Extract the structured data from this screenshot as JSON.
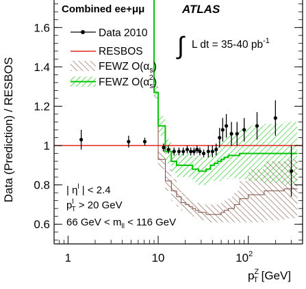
{
  "colors": {
    "resbos": "#e5231c",
    "fewz1": "#7b4a3c",
    "fewz2": "#00c400",
    "data": "#000000"
  },
  "chart_data": {
    "type": "line",
    "x_scale": "log",
    "xlim": [
      0.7,
      400
    ],
    "ylim": [
      0.5,
      1.74
    ],
    "y_ticks": [
      0.6,
      0.8,
      1.0,
      1.2,
      1.4,
      1.6
    ],
    "y_tick_labels": [
      "0.6",
      "0.8",
      "1",
      "1.2",
      "1.4",
      "1.6"
    ],
    "x_tick_labels": [
      "1",
      "10"
    ],
    "x_tick_label_10e2": {
      "base": "10",
      "exp": "2"
    },
    "ylabel": "Data (Prediction) / RESBOS",
    "xlabel": {
      "main": "p",
      "sup": "Z",
      "sub": "T",
      "unit": " [GeV]"
    },
    "texts": {
      "combined": "Combined ee+μμ",
      "atlas": "ATLAS",
      "lumi": "L dt = 35-40 pb",
      "lumi_sup": "-1",
      "cut_eta": "| η",
      "cut_eta_sup": "l",
      "cut_eta_rest": " | < 2.4",
      "cut_pt": "p",
      "cut_pt_sup": "l",
      "cut_pt_sub": "T",
      "cut_pt_rest": " > 20 GeV",
      "cut_m": "66 GeV < m",
      "cut_m_sub": "ll",
      "cut_m_rest": " < 116 GeV"
    },
    "legend": [
      {
        "key": "data",
        "label": "Data 2010"
      },
      {
        "key": "resbos",
        "label": "RESBOS"
      },
      {
        "key": "fewz1",
        "label": "FEWZ O(α",
        "sub": "s",
        "tail": ")"
      },
      {
        "key": "fewz2",
        "label": "FEWZ O(α",
        "sub": "s",
        "sup": "2",
        "tail": ")"
      }
    ],
    "bin_edges": [
      0,
      3,
      6,
      8,
      9,
      10,
      12,
      14,
      16,
      18,
      20,
      22,
      24,
      26,
      28,
      30,
      34,
      38,
      42,
      46,
      50,
      54,
      60,
      70,
      80,
      100,
      150,
      250,
      350
    ],
    "data_points": {
      "x": [
        1.4,
        4.7,
        7.1,
        11.5,
        13.0,
        15.0,
        17.0,
        19.0,
        21.0,
        23.0,
        25.0,
        27.0,
        29.0,
        32.0,
        36.0,
        40.0,
        44.0,
        48.0,
        52.0,
        57.0,
        65.0,
        75.0,
        90.0,
        125.0,
        200.0,
        300.0
      ],
      "y": [
        1.03,
        1.02,
        1.02,
        0.99,
        0.98,
        0.97,
        0.97,
        0.97,
        0.98,
        0.97,
        0.97,
        0.98,
        0.97,
        0.96,
        0.97,
        0.97,
        0.98,
        1.04,
        1.08,
        1.1,
        1.06,
        1.06,
        1.08,
        1.1,
        1.14,
        0.87
      ],
      "err": [
        0.05,
        0.03,
        0.02,
        0.02,
        0.02,
        0.02,
        0.02,
        0.02,
        0.02,
        0.02,
        0.02,
        0.02,
        0.02,
        0.02,
        0.03,
        0.03,
        0.03,
        0.05,
        0.06,
        0.06,
        0.06,
        0.06,
        0.06,
        0.07,
        0.09,
        0.13
      ]
    },
    "resbos": {
      "y": 1.0
    },
    "fewz1": {
      "bin_lo": [
        10,
        10,
        10,
        10,
        1.24,
        0.88,
        0.77,
        0.72,
        0.69,
        0.67,
        0.66,
        0.65,
        0.64,
        0.63,
        0.62,
        0.62,
        0.61,
        0.61,
        0.61,
        0.61,
        0.61,
        0.61,
        0.61,
        0.61,
        0.61,
        0.61,
        0.62,
        0.63
      ],
      "bin_hi": [
        10,
        10,
        10,
        10,
        1.3,
        0.98,
        0.88,
        0.83,
        0.79,
        0.76,
        0.74,
        0.73,
        0.72,
        0.71,
        0.71,
        0.7,
        0.7,
        0.7,
        0.7,
        0.7,
        0.71,
        0.72,
        0.74,
        0.77,
        0.82,
        0.88,
        0.92,
        0.93
      ],
      "center": [
        10,
        10,
        10,
        10,
        1.27,
        0.93,
        0.82,
        0.77,
        0.74,
        0.71,
        0.7,
        0.69,
        0.68,
        0.67,
        0.66,
        0.66,
        0.65,
        0.65,
        0.65,
        0.65,
        0.66,
        0.67,
        0.68,
        0.7,
        0.73,
        0.75,
        0.77,
        0.78
      ]
    },
    "fewz2": {
      "center": [
        10,
        10,
        10,
        10,
        1.27,
        1.1,
        0.97,
        0.92,
        0.9,
        0.9,
        0.9,
        0.9,
        0.88,
        0.88,
        0.87,
        0.87,
        0.88,
        0.9,
        0.91,
        0.92,
        0.93,
        0.94,
        0.95,
        0.95,
        0.96,
        0.96,
        0.96,
        0.96
      ],
      "err": [
        0,
        0,
        0,
        0,
        0.03,
        0.05,
        0.06,
        0.06,
        0.06,
        0.06,
        0.06,
        0.06,
        0.06,
        0.07,
        0.07,
        0.07,
        0.07,
        0.08,
        0.09,
        0.1,
        0.1,
        0.11,
        0.11,
        0.12,
        0.13,
        0.14,
        0.15,
        0.16
      ]
    }
  }
}
